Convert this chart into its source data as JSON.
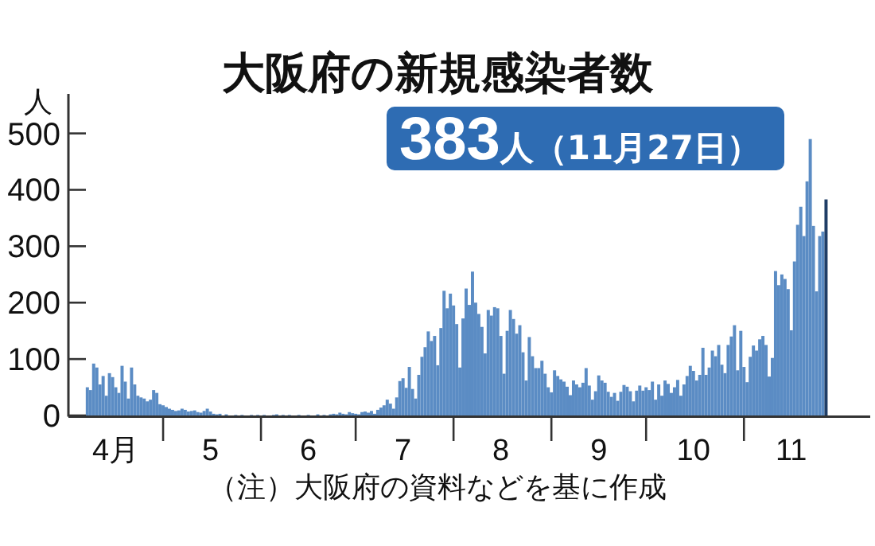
{
  "chart_data": {
    "type": "bar",
    "title": "大阪府の新規感染者数",
    "ylabel": "人",
    "annotations": [
      "383人（11月27日）",
      "（注）大阪府の資料などを基に作成"
    ],
    "xlim": [
      "--04-01",
      "--12-11"
    ],
    "xticks": [
      {
        "value": "--04-16",
        "label": "4月"
      },
      {
        "value": "--05-01",
        "label": null
      },
      {
        "value": "--05-16",
        "label": "5"
      },
      {
        "value": "--06-01",
        "label": null
      },
      {
        "value": "--06-16",
        "label": "6"
      },
      {
        "value": "--07-01",
        "label": null
      },
      {
        "value": "--07-16",
        "label": "7"
      },
      {
        "value": "--08-01",
        "label": null
      },
      {
        "value": "--08-16",
        "label": "8"
      },
      {
        "value": "--09-01",
        "label": null
      },
      {
        "value": "--09-16",
        "label": "9"
      },
      {
        "value": "--10-01",
        "label": null
      },
      {
        "value": "--10-16",
        "label": "10"
      },
      {
        "value": "--11-01",
        "label": null
      },
      {
        "value": "--11-16",
        "label": "11"
      }
    ],
    "ylim": [
      0,
      570
    ],
    "yticks": [
      0,
      100,
      200,
      300,
      400,
      500
    ],
    "grid": false,
    "series": [
      {
        "color": "#5b8cc4",
        "x": [
          "--04-07",
          "--04-08",
          "--04-09",
          "--04-10",
          "--04-11",
          "--04-12",
          "--04-13",
          "--04-14",
          "--04-15",
          "--04-16",
          "--04-17",
          "--04-18",
          "--04-19",
          "--04-20",
          "--04-21",
          "--04-22",
          "--04-23",
          "--04-24",
          "--04-25",
          "--04-26",
          "--04-27",
          "--04-28",
          "--04-29",
          "--04-30",
          "--05-01",
          "--05-02",
          "--05-03",
          "--05-04",
          "--05-05",
          "--05-06",
          "--05-07",
          "--05-08",
          "--05-09",
          "--05-10",
          "--05-11",
          "--05-12",
          "--05-13",
          "--05-14",
          "--05-15",
          "--05-16",
          "--05-17",
          "--05-18",
          "--05-19",
          "--05-20",
          "--05-21",
          "--05-22",
          "--05-23",
          "--05-24",
          "--05-25",
          "--05-26",
          "--05-27",
          "--05-28",
          "--05-29",
          "--05-30",
          "--05-31",
          "--06-01",
          "--06-02",
          "--06-03",
          "--06-04",
          "--06-05",
          "--06-06",
          "--06-07",
          "--06-08",
          "--06-09",
          "--06-10",
          "--06-11",
          "--06-12",
          "--06-13",
          "--06-14",
          "--06-15",
          "--06-16",
          "--06-17",
          "--06-18",
          "--06-19",
          "--06-20",
          "--06-21",
          "--06-22",
          "--06-23",
          "--06-24",
          "--06-25",
          "--06-26",
          "--06-27",
          "--06-28",
          "--06-29",
          "--06-30",
          "--07-01",
          "--07-02",
          "--07-03",
          "--07-04",
          "--07-05",
          "--07-06",
          "--07-07",
          "--07-08",
          "--07-09",
          "--07-10",
          "--07-11",
          "--07-12",
          "--07-13",
          "--07-14",
          "--07-15",
          "--07-16",
          "--07-17",
          "--07-18",
          "--07-19",
          "--07-20",
          "--07-21",
          "--07-22",
          "--07-23",
          "--07-24",
          "--07-25",
          "--07-26",
          "--07-27",
          "--07-28",
          "--07-29",
          "--07-30",
          "--07-31",
          "--08-01",
          "--08-02",
          "--08-03",
          "--08-04",
          "--08-05",
          "--08-06",
          "--08-07",
          "--08-08",
          "--08-09",
          "--08-10",
          "--08-11",
          "--08-12",
          "--08-13",
          "--08-14",
          "--08-15",
          "--08-16",
          "--08-17",
          "--08-18",
          "--08-19",
          "--08-20",
          "--08-21",
          "--08-22",
          "--08-23",
          "--08-24",
          "--08-25",
          "--08-26",
          "--08-27",
          "--08-28",
          "--08-29",
          "--08-30",
          "--08-31",
          "--09-01",
          "--09-02",
          "--09-03",
          "--09-04",
          "--09-05",
          "--09-06",
          "--09-07",
          "--09-08",
          "--09-09",
          "--09-10",
          "--09-11",
          "--09-12",
          "--09-13",
          "--09-14",
          "--09-15",
          "--09-16",
          "--09-17",
          "--09-18",
          "--09-19",
          "--09-20",
          "--09-21",
          "--09-22",
          "--09-23",
          "--09-24",
          "--09-25",
          "--09-26",
          "--09-27",
          "--09-28",
          "--09-29",
          "--09-30",
          "--10-01",
          "--10-02",
          "--10-03",
          "--10-04",
          "--10-05",
          "--10-06",
          "--10-07",
          "--10-08",
          "--10-09",
          "--10-10",
          "--10-11",
          "--10-12",
          "--10-13",
          "--10-14",
          "--10-15",
          "--10-16",
          "--10-17",
          "--10-18",
          "--10-19",
          "--10-20",
          "--10-21",
          "--10-22",
          "--10-23",
          "--10-24",
          "--10-25",
          "--10-26",
          "--10-27",
          "--10-28",
          "--10-29",
          "--10-30",
          "--10-31",
          "--11-01",
          "--11-02",
          "--11-03",
          "--11-04",
          "--11-05",
          "--11-06",
          "--11-07",
          "--11-08",
          "--11-09",
          "--11-10",
          "--11-11",
          "--11-12",
          "--11-13",
          "--11-14",
          "--11-15",
          "--11-16",
          "--11-17",
          "--11-18",
          "--11-19",
          "--11-20",
          "--11-21",
          "--11-22",
          "--11-23",
          "--11-24",
          "--11-25",
          "--11-26"
        ],
        "values": [
          50,
          45,
          92,
          85,
          55,
          70,
          35,
          75,
          68,
          50,
          40,
          88,
          60,
          30,
          85,
          55,
          35,
          32,
          30,
          25,
          28,
          45,
          40,
          20,
          18,
          15,
          12,
          10,
          8,
          9,
          12,
          10,
          7,
          8,
          9,
          6,
          5,
          8,
          12,
          7,
          3,
          2,
          3,
          0,
          2,
          0,
          0,
          1,
          0,
          1,
          0,
          0,
          1,
          0,
          1,
          0,
          1,
          0,
          0,
          1,
          2,
          0,
          1,
          0,
          1,
          0,
          0,
          1,
          0,
          0,
          1,
          0,
          0,
          2,
          0,
          1,
          0,
          2,
          3,
          2,
          5,
          3,
          2,
          6,
          4,
          3,
          2,
          6,
          7,
          5,
          8,
          3,
          10,
          14,
          18,
          28,
          21,
          12,
          32,
          61,
          66,
          49,
          86,
          47,
          30,
          72,
          104,
          121,
          149,
          132,
          141,
          89,
          155,
          221,
          190,
          216,
          195,
          162,
          85,
          172,
          225,
          196,
          255,
          200,
          180,
          157,
          110,
          187,
          177,
          192,
          190,
          141,
          74,
          150,
          187,
          171,
          145,
          160,
          112,
          62,
          139,
          105,
          84,
          84,
          97,
          74,
          50,
          41,
          80,
          70,
          64,
          60,
          51,
          36,
          62,
          55,
          50,
          58,
          84,
          53,
          28,
          43,
          71,
          62,
          58,
          42,
          33,
          40,
          26,
          42,
          54,
          51,
          43,
          25,
          44,
          53,
          44,
          50,
          45,
          60,
          28,
          55,
          35,
          62,
          56,
          40,
          50,
          63,
          35,
          55,
          70,
          88,
          79,
          62,
          72,
          120,
          72,
          85,
          115,
          105,
          125,
          90,
          75,
          125,
          140,
          160,
          80,
          150,
          86,
          59,
          104,
          124,
          115,
          135,
          141,
          125,
          69,
          102,
          256,
          231,
          250,
          242,
          224,
          151,
          273,
          338,
          370,
          318,
          415,
          490,
          336,
          220,
          318,
          326
        ]
      },
      {
        "color": "#1f3d66",
        "x": [
          "--11-27"
        ],
        "values": [
          383
        ]
      }
    ]
  }
}
